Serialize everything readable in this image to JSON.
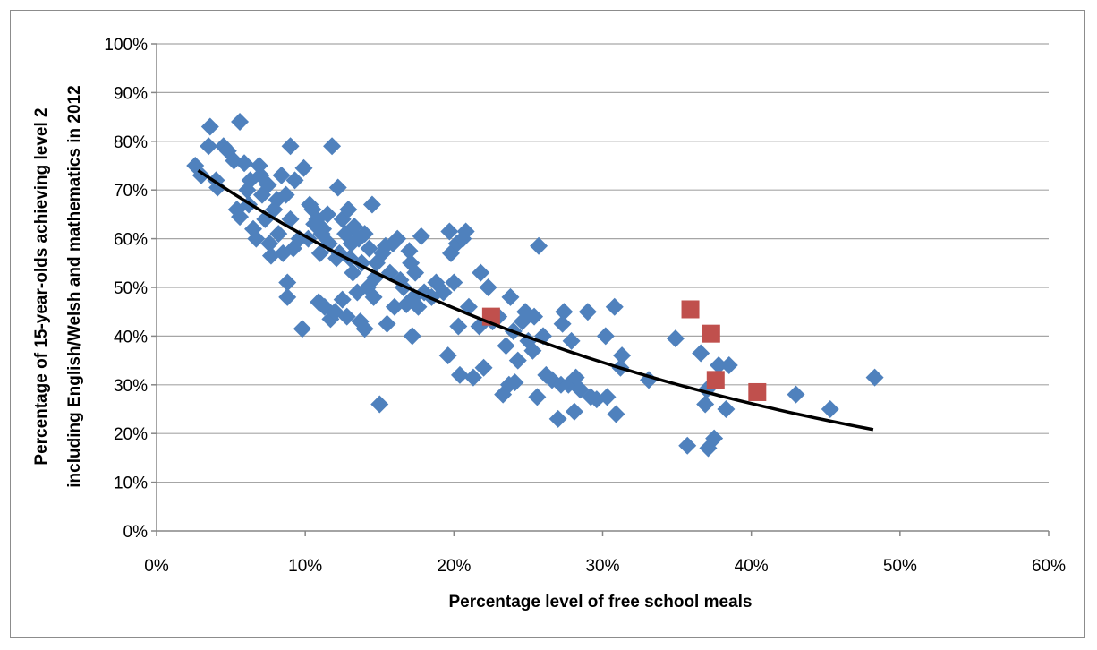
{
  "chart_data": {
    "type": "scatter",
    "title": "",
    "xlabel": "Percentage level of free school meals",
    "ylabel_lines": [
      "Percentage of 15-year-olds achieving level 2",
      "including English/Welsh and mathematics in 2012"
    ],
    "xlim": [
      0,
      60
    ],
    "ylim": [
      0,
      100
    ],
    "x_ticks": [
      0,
      10,
      20,
      30,
      40,
      50,
      60
    ],
    "y_ticks": [
      0,
      10,
      20,
      30,
      40,
      50,
      60,
      70,
      80,
      90,
      100
    ],
    "x_tick_labels": [
      "0%",
      "10%",
      "20%",
      "30%",
      "40%",
      "50%",
      "60%"
    ],
    "y_tick_labels": [
      "0%",
      "10%",
      "20%",
      "30%",
      "40%",
      "50%",
      "60%",
      "70%",
      "80%",
      "90%",
      "100%"
    ],
    "grid": "horizontal",
    "legend": "none",
    "colors": {
      "series_main": "#4f81bd",
      "series_highlight": "#c0504d",
      "trendline": "#000000",
      "grid": "#a6a6a6"
    },
    "series": [
      {
        "marker": "diamond",
        "points": [
          [
            2.6,
            75
          ],
          [
            3.0,
            73
          ],
          [
            3.5,
            79
          ],
          [
            3.6,
            83
          ],
          [
            4.0,
            72
          ],
          [
            4.1,
            70.5
          ],
          [
            4.5,
            79
          ],
          [
            4.8,
            78
          ],
          [
            5.2,
            76
          ],
          [
            5.4,
            66
          ],
          [
            5.6,
            84
          ],
          [
            5.6,
            64.5
          ],
          [
            5.9,
            75.5
          ],
          [
            6.1,
            70
          ],
          [
            6.2,
            67
          ],
          [
            6.3,
            72
          ],
          [
            6.5,
            62
          ],
          [
            6.7,
            60
          ],
          [
            6.9,
            75
          ],
          [
            7.0,
            73
          ],
          [
            7.1,
            69
          ],
          [
            7.3,
            64
          ],
          [
            7.5,
            71
          ],
          [
            7.6,
            59
          ],
          [
            7.7,
            56.5
          ],
          [
            7.9,
            66
          ],
          [
            8.1,
            68
          ],
          [
            8.2,
            61
          ],
          [
            8.4,
            73
          ],
          [
            8.5,
            57
          ],
          [
            8.7,
            69
          ],
          [
            8.8,
            48
          ],
          [
            8.8,
            51
          ],
          [
            9.0,
            64
          ],
          [
            9.0,
            79
          ],
          [
            9.2,
            58
          ],
          [
            9.3,
            72
          ],
          [
            9.6,
            60
          ],
          [
            9.8,
            41.5
          ],
          [
            9.9,
            74.5
          ],
          [
            10.2,
            60
          ],
          [
            10.3,
            67
          ],
          [
            10.5,
            66
          ],
          [
            10.6,
            63
          ],
          [
            10.8,
            64
          ],
          [
            10.9,
            47
          ],
          [
            11.0,
            57
          ],
          [
            11.1,
            61
          ],
          [
            11.2,
            62
          ],
          [
            11.3,
            46
          ],
          [
            11.5,
            65
          ],
          [
            11.6,
            59
          ],
          [
            11.7,
            43.5
          ],
          [
            11.8,
            79
          ],
          [
            12.0,
            45
          ],
          [
            12.1,
            56
          ],
          [
            12.2,
            70.5
          ],
          [
            12.3,
            57
          ],
          [
            12.5,
            64
          ],
          [
            12.5,
            47.5
          ],
          [
            12.7,
            61
          ],
          [
            12.8,
            44
          ],
          [
            12.9,
            66
          ],
          [
            13.0,
            56
          ],
          [
            13.1,
            59
          ],
          [
            13.2,
            53
          ],
          [
            13.3,
            62.5
          ],
          [
            13.5,
            49
          ],
          [
            13.6,
            60
          ],
          [
            13.7,
            43
          ],
          [
            13.8,
            55
          ],
          [
            14.0,
            61
          ],
          [
            14.0,
            41.5
          ],
          [
            14.2,
            50
          ],
          [
            14.3,
            58
          ],
          [
            14.5,
            67
          ],
          [
            14.6,
            48
          ],
          [
            14.7,
            52
          ],
          [
            14.8,
            55
          ],
          [
            15.0,
            26
          ],
          [
            15.2,
            57
          ],
          [
            15.4,
            58.5
          ],
          [
            15.5,
            42.5
          ],
          [
            15.7,
            53
          ],
          [
            15.9,
            59
          ],
          [
            16.0,
            46
          ],
          [
            16.2,
            60
          ],
          [
            16.4,
            51.5
          ],
          [
            16.6,
            50
          ],
          [
            16.8,
            46.5
          ],
          [
            17.0,
            57.5
          ],
          [
            17.1,
            55
          ],
          [
            17.2,
            40
          ],
          [
            17.3,
            48
          ],
          [
            17.4,
            53
          ],
          [
            17.6,
            46
          ],
          [
            17.8,
            60.5
          ],
          [
            18.0,
            49
          ],
          [
            18.5,
            48
          ],
          [
            18.8,
            51
          ],
          [
            19.3,
            49
          ],
          [
            19.6,
            36
          ],
          [
            19.7,
            61.5
          ],
          [
            19.8,
            57
          ],
          [
            20.0,
            51
          ],
          [
            20.2,
            59
          ],
          [
            20.3,
            42
          ],
          [
            20.4,
            32
          ],
          [
            20.6,
            60
          ],
          [
            20.8,
            61.5
          ],
          [
            21.0,
            46
          ],
          [
            21.3,
            31.5
          ],
          [
            21.7,
            42
          ],
          [
            21.8,
            53
          ],
          [
            22.0,
            33.5
          ],
          [
            22.3,
            50
          ],
          [
            22.6,
            43
          ],
          [
            23.0,
            44
          ],
          [
            23.3,
            28
          ],
          [
            23.5,
            38
          ],
          [
            23.7,
            30
          ],
          [
            23.8,
            48
          ],
          [
            24.0,
            41
          ],
          [
            24.1,
            30.5
          ],
          [
            24.3,
            35
          ],
          [
            24.6,
            43
          ],
          [
            24.8,
            45
          ],
          [
            25.0,
            39
          ],
          [
            25.3,
            37
          ],
          [
            25.4,
            44
          ],
          [
            25.6,
            27.5
          ],
          [
            25.7,
            58.5
          ],
          [
            26.0,
            40
          ],
          [
            26.2,
            32
          ],
          [
            26.6,
            31
          ],
          [
            27.0,
            23
          ],
          [
            27.2,
            30
          ],
          [
            27.3,
            42.5
          ],
          [
            27.4,
            45
          ],
          [
            27.7,
            30
          ],
          [
            27.9,
            39
          ],
          [
            28.1,
            24.5
          ],
          [
            28.2,
            31.5
          ],
          [
            28.5,
            29
          ],
          [
            29.0,
            45
          ],
          [
            29.2,
            27.5
          ],
          [
            29.6,
            27
          ],
          [
            30.2,
            40
          ],
          [
            30.3,
            27.5
          ],
          [
            30.8,
            46
          ],
          [
            30.9,
            24
          ],
          [
            31.2,
            33.5
          ],
          [
            31.3,
            36
          ],
          [
            33.1,
            31
          ],
          [
            34.9,
            39.5
          ],
          [
            35.7,
            17.5
          ],
          [
            36.6,
            36.5
          ],
          [
            36.9,
            26
          ],
          [
            37.0,
            29
          ],
          [
            37.1,
            17
          ],
          [
            37.5,
            19
          ],
          [
            37.8,
            34
          ],
          [
            38.3,
            25
          ],
          [
            38.5,
            34
          ],
          [
            43.0,
            28
          ],
          [
            45.3,
            25
          ],
          [
            48.3,
            31.5
          ]
        ]
      },
      {
        "marker": "square",
        "points": [
          [
            22.5,
            44
          ],
          [
            35.9,
            45.5
          ],
          [
            37.3,
            40.5
          ],
          [
            37.6,
            31
          ],
          [
            40.4,
            28.5
          ]
        ]
      }
    ],
    "trendline": {
      "type": "curve",
      "x_range": [
        2.8,
        48.2
      ],
      "y_at_start": 74,
      "y_at_end": 20.8
    }
  }
}
